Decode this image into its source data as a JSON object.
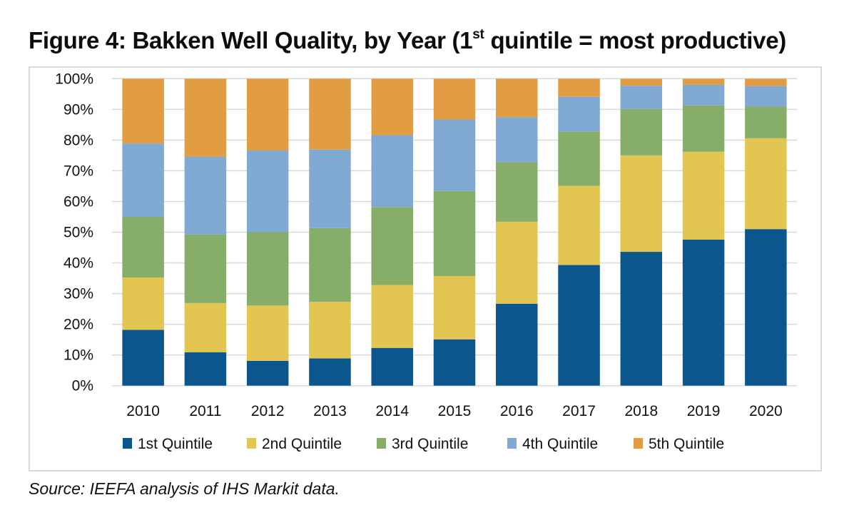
{
  "figure": {
    "title_prefix": "Figure 4: Bakken Well Quality, by Year (1",
    "title_sup": "st",
    "title_suffix": " quintile = most productive)",
    "source": "Source: IEEFA analysis of IHS Markit data."
  },
  "chart_data": {
    "type": "bar",
    "stacked": true,
    "percent_stacked": true,
    "title": "Figure 4: Bakken Well Quality, by Year (1st quintile = most productive)",
    "xlabel": "",
    "ylabel": "",
    "ylim": [
      0,
      100
    ],
    "y_ticks": [
      "0%",
      "10%",
      "20%",
      "30%",
      "40%",
      "50%",
      "60%",
      "70%",
      "80%",
      "90%",
      "100%"
    ],
    "grid": true,
    "legend_position": "bottom",
    "categories": [
      "2010",
      "2011",
      "2012",
      "2013",
      "2014",
      "2015",
      "2016",
      "2017",
      "2018",
      "2019",
      "2020"
    ],
    "series": [
      {
        "name": "1st Quintile",
        "color": "#0b568c",
        "values": [
          18.2,
          10.9,
          8.1,
          8.9,
          12.3,
          15.1,
          26.7,
          39.3,
          43.6,
          47.6,
          51.0
        ]
      },
      {
        "name": "2nd Quintile",
        "color": "#e3c552",
        "values": [
          17.0,
          16.0,
          18.0,
          18.4,
          20.5,
          20.6,
          26.7,
          25.8,
          31.4,
          28.6,
          29.6
        ]
      },
      {
        "name": "3rd Quintile",
        "color": "#87ae68",
        "values": [
          19.8,
          22.3,
          23.9,
          24.0,
          25.4,
          27.7,
          19.4,
          17.7,
          15.1,
          15.1,
          10.3
        ]
      },
      {
        "name": "4th Quintile",
        "color": "#80aad4",
        "values": [
          23.9,
          25.4,
          26.6,
          25.6,
          23.4,
          23.3,
          14.7,
          11.3,
          7.6,
          6.7,
          6.7
        ]
      },
      {
        "name": "5th Quintile",
        "color": "#e29c42",
        "values": [
          21.1,
          25.4,
          23.4,
          23.1,
          18.4,
          13.3,
          12.5,
          5.9,
          2.3,
          2.0,
          2.4
        ]
      }
    ]
  }
}
